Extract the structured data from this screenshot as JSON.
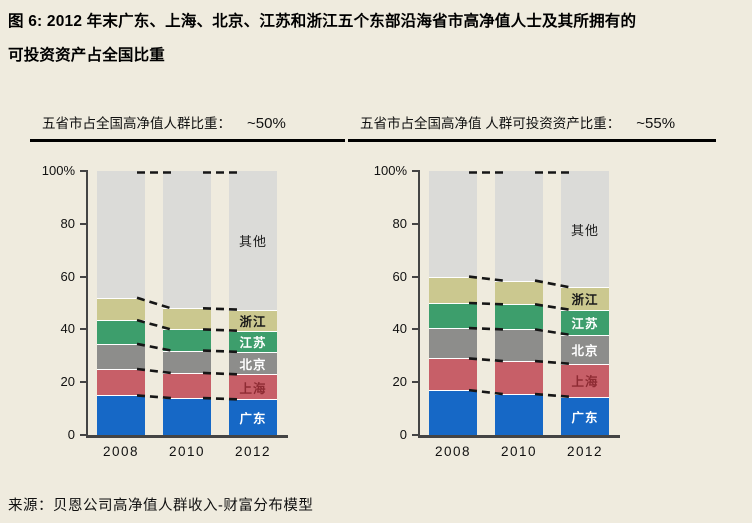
{
  "title": {
    "line1": "图 6: 2012 年末广东、上海、北京、江苏和浙江五个东部沿海省市高净值人士及其所拥有的",
    "line2": "可投资资产占全国比重"
  },
  "source": "来源：贝恩公司高净值人群收入-财富分布模型",
  "colors": {
    "background": "#EFEBDE",
    "axis": "#444444",
    "connector": "#161616",
    "header_rule": "#000000",
    "segment_divider": "#FFFFFF"
  },
  "chart_data": [
    {
      "type": "bar",
      "stacked": true,
      "title": "五省市占全国高净值人群比重：",
      "annotation": "~50%",
      "categories": [
        "2008",
        "2010",
        "2012"
      ],
      "ylim": [
        0,
        100
      ],
      "grid": false,
      "legend_position": "on-last-bar",
      "yticks": [
        {
          "value": 0,
          "label": "0"
        },
        {
          "value": 20,
          "label": "20"
        },
        {
          "value": 40,
          "label": "40"
        },
        {
          "value": 60,
          "label": "60"
        },
        {
          "value": 80,
          "label": "80"
        },
        {
          "value": 100,
          "label": "100%"
        }
      ],
      "series": [
        {
          "name": "广东",
          "color": "#1668C6",
          "label_color": "#FFFFFF",
          "values": [
            15,
            14,
            13.5
          ]
        },
        {
          "name": "上海",
          "color": "#C75F68",
          "label_color": "#8E2B33",
          "values": [
            10,
            9.5,
            9.5
          ]
        },
        {
          "name": "北京",
          "color": "#8D8D8B",
          "label_color": "#FFFFFF",
          "values": [
            9.5,
            8.5,
            8.5
          ]
        },
        {
          "name": "江苏",
          "color": "#3D9E6C",
          "label_color": "#FFFFFF",
          "values": [
            9,
            8,
            8
          ]
        },
        {
          "name": "浙江",
          "color": "#CBC88F",
          "label_color": "#1A1A1A",
          "values": [
            8.5,
            8,
            8
          ]
        },
        {
          "name": "其他",
          "color": "#DBDBD8",
          "label_color": "#1A1A1A",
          "values": [
            48,
            52,
            52.5
          ]
        }
      ]
    },
    {
      "type": "bar",
      "stacked": true,
      "title": "五省市占全国高净值 人群可投资资产比重：",
      "annotation": "~55%",
      "categories": [
        "2008",
        "2010",
        "2012"
      ],
      "ylim": [
        0,
        100
      ],
      "grid": false,
      "legend_position": "on-last-bar",
      "yticks": [
        {
          "value": 0,
          "label": "0"
        },
        {
          "value": 20,
          "label": "20"
        },
        {
          "value": 40,
          "label": "40"
        },
        {
          "value": 60,
          "label": "60"
        },
        {
          "value": 80,
          "label": "80"
        },
        {
          "value": 100,
          "label": "100%"
        }
      ],
      "series": [
        {
          "name": "广东",
          "color": "#1668C6",
          "label_color": "#FFFFFF",
          "values": [
            17,
            15.5,
            14.5
          ]
        },
        {
          "name": "上海",
          "color": "#C75F68",
          "label_color": "#8E2B33",
          "values": [
            12,
            12.5,
            12.5
          ]
        },
        {
          "name": "北京",
          "color": "#8D8D8B",
          "label_color": "#FFFFFF",
          "values": [
            11.5,
            12,
            11
          ]
        },
        {
          "name": "江苏",
          "color": "#3D9E6C",
          "label_color": "#FFFFFF",
          "values": [
            9.5,
            9.5,
            9.5
          ]
        },
        {
          "name": "浙江",
          "color": "#CBC88F",
          "label_color": "#1A1A1A",
          "values": [
            10,
            9,
            8.5
          ]
        },
        {
          "name": "其他",
          "color": "#DBDBD8",
          "label_color": "#1A1A1A",
          "values": [
            40,
            41.5,
            44
          ]
        }
      ]
    }
  ]
}
